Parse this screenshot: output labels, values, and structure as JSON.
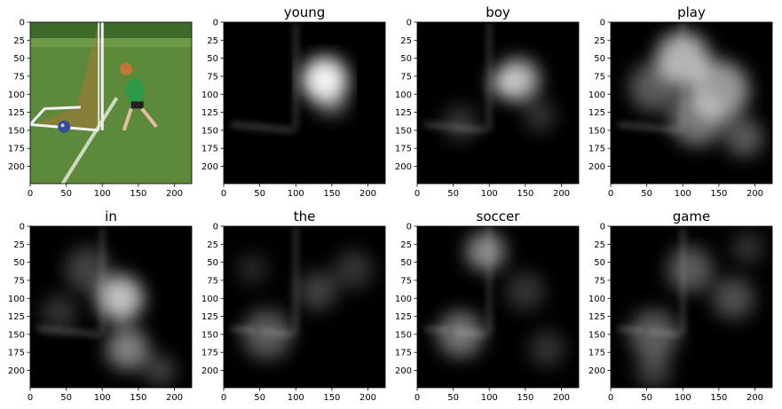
{
  "figure": {
    "panels": [
      {
        "title": "",
        "kind": "photo"
      },
      {
        "title": "young",
        "kind": "attention"
      },
      {
        "title": "boy",
        "kind": "attention"
      },
      {
        "title": "play",
        "kind": "attention"
      },
      {
        "title": "in",
        "kind": "attention"
      },
      {
        "title": "the",
        "kind": "attention"
      },
      {
        "title": "soccer",
        "kind": "attention"
      },
      {
        "title": "game",
        "kind": "attention"
      }
    ],
    "xticks": [
      "0",
      "50",
      "100",
      "150",
      "200"
    ],
    "yticks": [
      "0",
      "25",
      "50",
      "75",
      "100",
      "125",
      "150",
      "175",
      "200"
    ],
    "image_size": 224
  },
  "colors": {
    "grass": "#5d8a3a",
    "jersey": "#2e9a48",
    "ball": "#3a4a9a",
    "attention_bg": "#000000",
    "attention_highlight": "#ffffff"
  }
}
